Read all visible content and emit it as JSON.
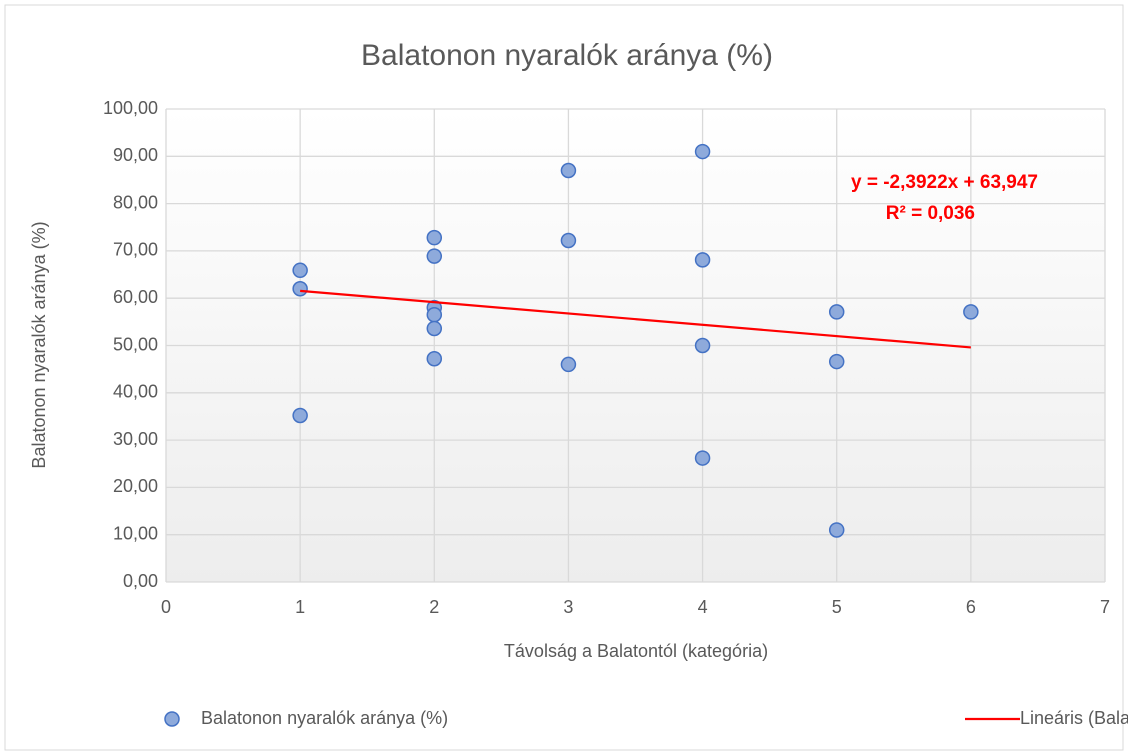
{
  "chart_data": {
    "type": "scatter",
    "title": "Balatonon nyaralók aránya (%)",
    "x_label": "Távolság a Balatontól (kategória)",
    "y_label": "Balatonon nyaralók aránya (%)",
    "series": [
      {
        "name": "Balatonon nyaralók aránya (%)",
        "color": "#8eaadb",
        "edge_color": "#4472c4",
        "x": [
          1,
          1,
          1,
          2,
          2,
          2,
          2,
          2,
          2,
          3,
          3,
          3,
          4,
          4,
          4,
          4,
          5,
          5,
          5,
          6
        ],
        "values": [
          65.9,
          62.0,
          35.2,
          72.8,
          68.9,
          58.0,
          56.5,
          53.6,
          47.2,
          87.0,
          72.2,
          46.0,
          91.0,
          68.1,
          50.0,
          26.2,
          57.1,
          46.6,
          11.0,
          57.1
        ]
      }
    ],
    "trendline": {
      "name": "Lineáris (Balatonon nyaralók aránya (%))",
      "color": "#ff0000",
      "slope": -2.3922,
      "intercept": 63.947,
      "equation": "y = -2,3922x + 63,947",
      "r2_label": "R² = 0,036"
    },
    "xlim": [
      0,
      7
    ],
    "xticks": [
      0,
      1,
      2,
      3,
      4,
      5,
      6,
      7
    ],
    "ylim": [
      0,
      100
    ],
    "yticks": [
      {
        "value": 0,
        "label": "0,00"
      },
      {
        "value": 10,
        "label": "10,00"
      },
      {
        "value": 20,
        "label": "20,00"
      },
      {
        "value": 30,
        "label": "30,00"
      },
      {
        "value": 40,
        "label": "40,00"
      },
      {
        "value": 50,
        "label": "50,00"
      },
      {
        "value": 60,
        "label": "60,00"
      },
      {
        "value": 70,
        "label": "70,00"
      },
      {
        "value": 80,
        "label": "80,00"
      },
      {
        "value": 90,
        "label": "90,00"
      },
      {
        "value": 100,
        "label": "100,00"
      }
    ],
    "grid": true,
    "legend": "bottom"
  }
}
